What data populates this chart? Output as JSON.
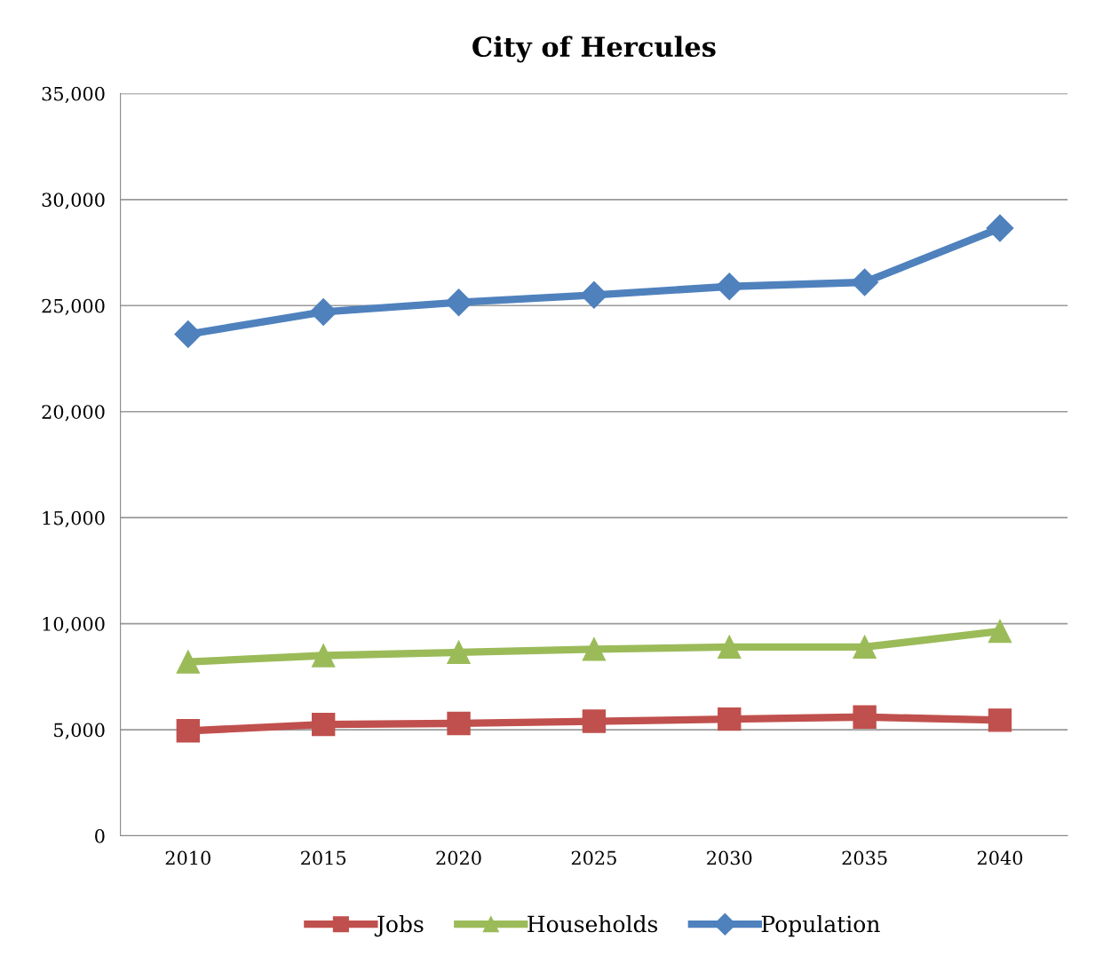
{
  "chart_data": {
    "type": "line",
    "title": "City of Hercules",
    "categories": [
      "2010",
      "2015",
      "2020",
      "2025",
      "2030",
      "2035",
      "2040"
    ],
    "series": [
      {
        "name": "Jobs",
        "color": "#c0504d",
        "marker": "square",
        "values": [
          4950,
          5250,
          5300,
          5400,
          5500,
          5600,
          5450
        ]
      },
      {
        "name": "Households",
        "color": "#9bbb59",
        "marker": "triangle",
        "values": [
          8200,
          8500,
          8650,
          8800,
          8900,
          8900,
          9650
        ]
      },
      {
        "name": "Population",
        "color": "#4f81bd",
        "marker": "diamond",
        "values": [
          23650,
          24700,
          25150,
          25500,
          25900,
          26100,
          28650
        ]
      }
    ],
    "ylim": [
      0,
      35000
    ],
    "yticks": [
      {
        "value": 0,
        "label": "0"
      },
      {
        "value": 5000,
        "label": "5,000"
      },
      {
        "value": 10000,
        "label": "10,000"
      },
      {
        "value": 15000,
        "label": "15,000"
      },
      {
        "value": 20000,
        "label": "20,000"
      },
      {
        "value": 25000,
        "label": "25,000"
      },
      {
        "value": 30000,
        "label": "30,000"
      },
      {
        "value": 35000,
        "label": "35,000"
      }
    ],
    "grid": "y",
    "legend": "bottom",
    "line_style": "solid"
  }
}
